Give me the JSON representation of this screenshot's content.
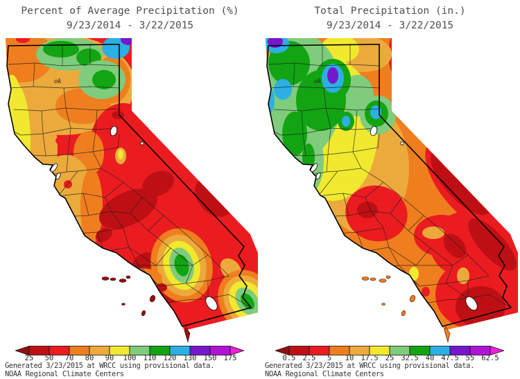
{
  "page": {
    "background": "#FFFFFF"
  },
  "palette": {
    "maroon": "#8F1212",
    "red1": "#BE1014",
    "red2": "#EB1C20",
    "orange": "#EF7E1F",
    "amber": "#ECAA3C",
    "yellow": "#F0E92F",
    "lgreen": "#7FCC7C",
    "green": "#12A412",
    "cyan": "#2CAFE4",
    "violet": "#7717CB",
    "purple": "#B114D6",
    "magenta": "#EE1FD6",
    "lake_white": "#FFFFFF",
    "boundary_black": "#000000",
    "title_gray": "#4E4E4E",
    "label_gray": "#252525"
  },
  "attribution": {
    "line1": "Generated 3/23/2015 at WRCC using provisional data.",
    "line2": "NOAA Regional Climate Centers"
  },
  "panels": {
    "left": {
      "title": "Percent of Average Precipitation (%)",
      "date_range": "9/23/2014 - 3/22/2015",
      "map_annotation": "ok",
      "colorbar": {
        "units": "% of average",
        "left_arrow": "maroon",
        "segments": [
          "red1",
          "red2",
          "orange",
          "amber",
          "yellow",
          "lgreen",
          "green",
          "cyan",
          "violet",
          "purple"
        ],
        "right_arrow": "magenta",
        "ticks": [
          "25",
          "50",
          "70",
          "80",
          "90",
          "100",
          "110",
          "120",
          "130",
          "150",
          "175"
        ]
      }
    },
    "right": {
      "title": "Total Precipitation (in.)",
      "date_range": "9/23/2014 - 3/22/2015",
      "map_annotation": "ok",
      "colorbar": {
        "units": "inches",
        "left_arrow": "maroon",
        "segments": [
          "red1",
          "red2",
          "orange",
          "amber",
          "yellow",
          "lgreen",
          "green",
          "cyan",
          "violet",
          "purple"
        ],
        "right_arrow": "magenta",
        "ticks": [
          "0.5",
          "2.5",
          "5",
          "10",
          "17.5",
          "25",
          "32.5",
          "40",
          "47.5",
          "55",
          "62.5"
        ]
      }
    }
  },
  "chart_data": [
    {
      "type": "heatmap",
      "title": "Percent of Average Precipitation (%)",
      "period": "9/23/2014 - 3/22/2015",
      "region": "California (with spillover band into western Nevada)",
      "scale_ticks": [
        25,
        50,
        70,
        80,
        90,
        100,
        110,
        120,
        130,
        150,
        175
      ],
      "scale_color_keys": [
        "maroon",
        "red1",
        "red2",
        "orange",
        "amber",
        "yellow",
        "lgreen",
        "green",
        "cyan",
        "violet",
        "purple",
        "magenta"
      ],
      "legend_position": "bottom",
      "regional_readings": {
        "northwest_coast": "70-100",
        "far_north_border": "100-130",
        "northeast_top_corner": "130-175+",
        "sacramento_valley_bay_area": "80-90",
        "sierra_nevada_core": "25-50",
        "tahoe_vicinity": "50-70",
        "owens_valley_bullseye": "90-120",
        "southern_california": "25-70",
        "southeast_border_bullseye": "90-120"
      }
    },
    {
      "type": "heatmap",
      "title": "Total Precipitation (in.)",
      "period": "9/23/2014 - 3/22/2015",
      "region": "California (with spillover band into western Nevada)",
      "scale_ticks": [
        0.5,
        2.5,
        5,
        10,
        17.5,
        25,
        32.5,
        40,
        47.5,
        55,
        62.5
      ],
      "scale_color_keys": [
        "maroon",
        "red1",
        "red2",
        "orange",
        "amber",
        "yellow",
        "lgreen",
        "green",
        "cyan",
        "violet",
        "purple",
        "magenta"
      ],
      "legend_position": "bottom",
      "regional_readings": {
        "northwest_coast_cores": "47.5-62.5+",
        "shasta_trinity_purple_core": "55-62.5",
        "north_sierra_tahoe": "25-47.5",
        "central_valley": "10-25",
        "kern_south_sierra": "2.5-5",
        "eastern_nevada_border_band": "0.5-2.5",
        "south_coast": "5-10",
        "salton_imperial": "0.5-2.5"
      }
    }
  ]
}
